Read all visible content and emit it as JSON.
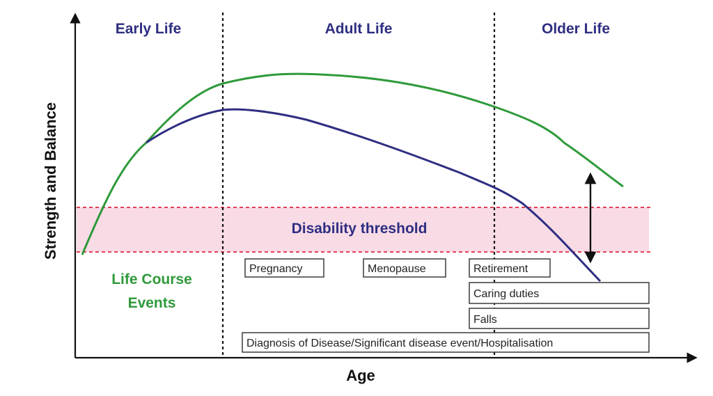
{
  "diagram": {
    "phases": [
      "Early Life",
      "Adult Life",
      "Older Life"
    ],
    "y_axis_label": "Strength and Balance",
    "x_axis_label": "Age",
    "threshold_label": "Disability threshold",
    "life_course_label_line1": "Life Course",
    "life_course_label_line2": "Events",
    "events": {
      "pregnancy": "Pregnancy",
      "menopause": "Menopause",
      "retirement": "Retirement",
      "caring": "Caring duties",
      "falls": "Falls",
      "diagnosis": "Diagnosis of Disease/Significant disease event/Hospitalisation"
    }
  },
  "colors": {
    "green_curve": "#2e9a3a",
    "blue_curve": "#2e2e82",
    "threshold_band": "#f9dbe6",
    "threshold_line": "#e0405a"
  }
}
